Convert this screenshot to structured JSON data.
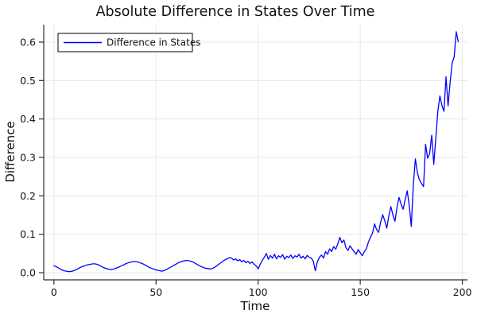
{
  "chart_data": {
    "type": "line",
    "title": "Absolute Difference in States Over Time",
    "xlabel": "Time",
    "ylabel": "Difference",
    "xlim": [
      -5,
      202.5
    ],
    "ylim": [
      -0.0186,
      0.6455
    ],
    "xticks": [
      0,
      50,
      100,
      150,
      200
    ],
    "yticks": [
      0.0,
      0.1,
      0.2,
      0.3,
      0.4,
      0.5,
      0.6
    ],
    "grid": true,
    "legend_position": "top-left",
    "colors": {
      "series": "#0000ff",
      "grid": "#e8e8e8",
      "axis": "#2e2e2e",
      "text": "#111111",
      "background": "#ffffff",
      "legend_border": "#000000"
    },
    "series": [
      {
        "name": "Difference in States",
        "color": "#0000ff",
        "x_start": 0,
        "x_step": 1,
        "values": [
          0.018,
          0.016,
          0.013,
          0.01,
          0.007,
          0.005,
          0.004,
          0.003,
          0.003,
          0.004,
          0.006,
          0.008,
          0.011,
          0.014,
          0.016,
          0.018,
          0.02,
          0.021,
          0.022,
          0.023,
          0.023,
          0.022,
          0.02,
          0.017,
          0.014,
          0.012,
          0.01,
          0.009,
          0.008,
          0.009,
          0.011,
          0.013,
          0.015,
          0.018,
          0.02,
          0.023,
          0.025,
          0.027,
          0.028,
          0.029,
          0.029,
          0.028,
          0.026,
          0.024,
          0.022,
          0.019,
          0.016,
          0.013,
          0.011,
          0.009,
          0.007,
          0.006,
          0.005,
          0.004,
          0.006,
          0.008,
          0.011,
          0.014,
          0.017,
          0.02,
          0.023,
          0.026,
          0.028,
          0.03,
          0.031,
          0.032,
          0.031,
          0.03,
          0.028,
          0.025,
          0.022,
          0.019,
          0.016,
          0.014,
          0.012,
          0.011,
          0.01,
          0.01,
          0.012,
          0.015,
          0.019,
          0.023,
          0.027,
          0.031,
          0.034,
          0.037,
          0.039,
          0.038,
          0.033,
          0.036,
          0.031,
          0.034,
          0.028,
          0.032,
          0.026,
          0.03,
          0.024,
          0.028,
          0.022,
          0.018,
          0.01,
          0.022,
          0.032,
          0.04,
          0.05,
          0.035,
          0.045,
          0.038,
          0.048,
          0.036,
          0.044,
          0.04,
          0.047,
          0.035,
          0.043,
          0.039,
          0.046,
          0.037,
          0.044,
          0.041,
          0.048,
          0.038,
          0.043,
          0.036,
          0.045,
          0.04,
          0.038,
          0.03,
          0.005,
          0.028,
          0.04,
          0.046,
          0.038,
          0.055,
          0.048,
          0.062,
          0.055,
          0.068,
          0.061,
          0.075,
          0.092,
          0.078,
          0.085,
          0.065,
          0.058,
          0.07,
          0.062,
          0.055,
          0.048,
          0.06,
          0.052,
          0.044,
          0.055,
          0.062,
          0.08,
          0.092,
          0.103,
          0.127,
          0.112,
          0.105,
          0.132,
          0.151,
          0.135,
          0.116,
          0.148,
          0.172,
          0.15,
          0.134,
          0.17,
          0.196,
          0.178,
          0.165,
          0.19,
          0.213,
          0.175,
          0.12,
          0.23,
          0.296,
          0.26,
          0.241,
          0.232,
          0.224,
          0.334,
          0.298,
          0.31,
          0.358,
          0.282,
          0.35,
          0.42,
          0.46,
          0.435,
          0.42,
          0.51,
          0.434,
          0.495,
          0.545,
          0.562,
          0.627,
          0.601
        ]
      }
    ]
  }
}
